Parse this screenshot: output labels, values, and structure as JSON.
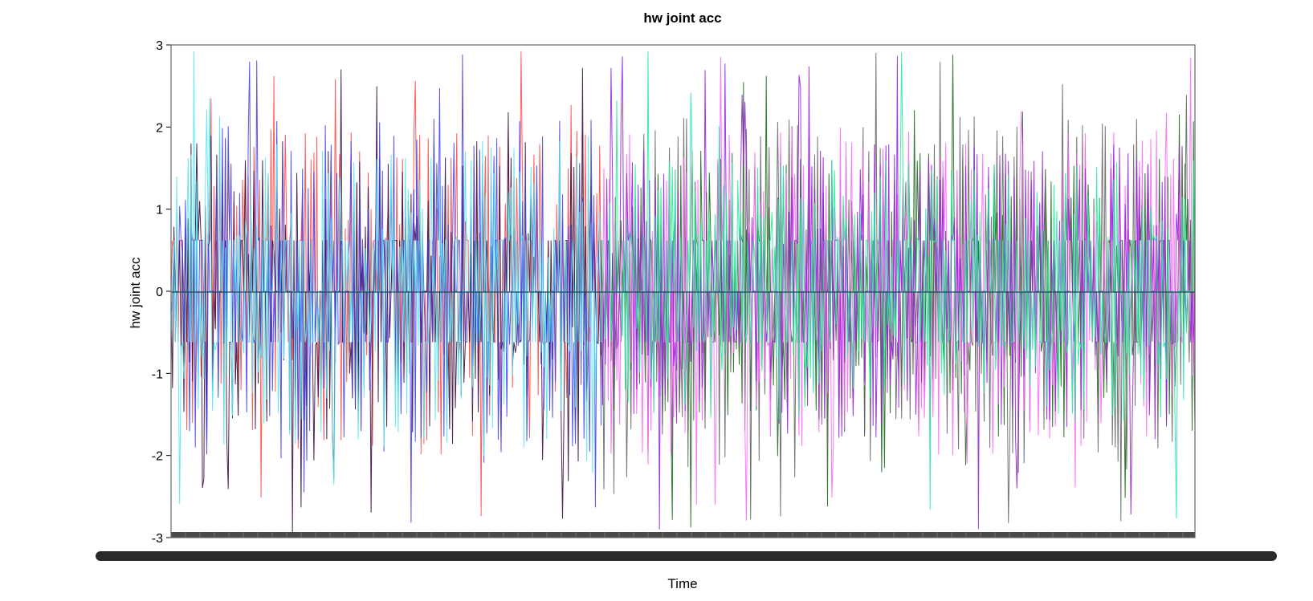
{
  "chart_data": {
    "type": "line",
    "title": "hw joint acc",
    "xlabel": "Time",
    "ylabel": "hw joint acc",
    "ylim": [
      -3,
      3
    ],
    "yticks": [
      -3,
      -2,
      -1,
      0,
      1,
      2,
      3
    ],
    "grid": false,
    "legend": "none",
    "x_samples": 720,
    "series": [
      {
        "color": "#ff4a4a",
        "segment": [
          0.0,
          0.42
        ],
        "amp": 1.6,
        "seed": 11
      },
      {
        "color": "#3a0f3f",
        "segment": [
          0.0,
          0.42
        ],
        "amp": 1.5,
        "seed": 23
      },
      {
        "color": "#4444ee",
        "segment": [
          0.0,
          0.42
        ],
        "amp": 1.7,
        "seed": 37
      },
      {
        "color": "#55e6f0",
        "segment": [
          0.0,
          0.42
        ],
        "amp": 1.5,
        "seed": 41
      },
      {
        "color": "#1a6b1a",
        "segment": [
          0.42,
          1.0
        ],
        "amp": 1.4,
        "seed": 53
      },
      {
        "color": "#666666",
        "segment": [
          0.42,
          1.0
        ],
        "amp": 1.8,
        "seed": 67
      },
      {
        "color": "#ff66ff",
        "segment": [
          0.42,
          1.0
        ],
        "amp": 1.6,
        "seed": 71
      },
      {
        "color": "#9922dd",
        "segment": [
          0.42,
          1.0
        ],
        "amp": 1.4,
        "seed": 83
      },
      {
        "color": "#22ee99",
        "segment": [
          0.42,
          1.0
        ],
        "amp": 1.2,
        "seed": 97
      }
    ]
  },
  "colors": {
    "frame": "#666666",
    "zero_line": "#1a4a5a",
    "scrollbar": "#2a2a2a",
    "bottom_band": "#4a4a4a"
  }
}
